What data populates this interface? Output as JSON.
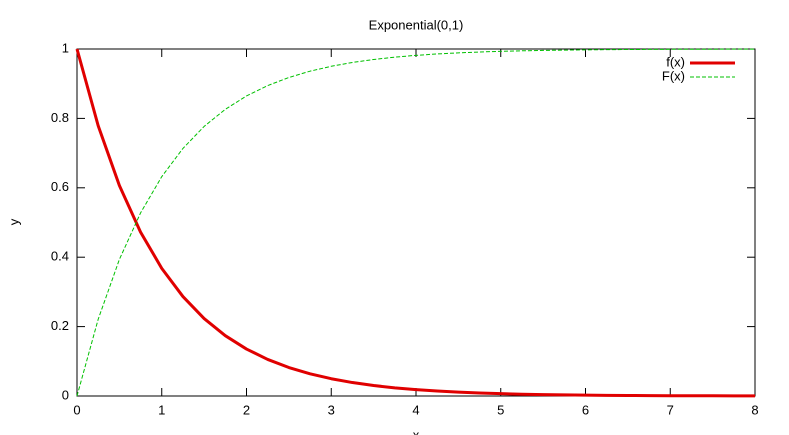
{
  "chart_data": {
    "type": "line",
    "title": "Exponential(0,1)",
    "x_label": "x",
    "y_label": "y",
    "x": [
      0,
      0.25,
      0.5,
      0.75,
      1,
      1.25,
      1.5,
      1.75,
      2,
      2.25,
      2.5,
      2.75,
      3,
      3.25,
      3.5,
      3.75,
      4,
      4.25,
      4.5,
      4.75,
      5,
      5.25,
      5.5,
      5.75,
      6,
      6.25,
      6.5,
      6.75,
      7,
      7.25,
      7.5,
      7.75,
      8
    ],
    "series": [
      {
        "name": "f(x)",
        "color": "#e00000",
        "dashed": false,
        "width": 3,
        "values": [
          1,
          0.7788,
          0.6065,
          0.4724,
          0.3679,
          0.2865,
          0.2231,
          0.1738,
          0.1353,
          0.1054,
          0.0821,
          0.0639,
          0.0498,
          0.0388,
          0.0302,
          0.0235,
          0.0183,
          0.0143,
          0.0111,
          0.0087,
          0.0067,
          0.0052,
          0.0041,
          0.0032,
          0.0025,
          0.0019,
          0.0015,
          0.0012,
          0.0009,
          0.0007,
          0.0006,
          0.0004,
          0.0003
        ]
      },
      {
        "name": "F(x)",
        "color": "#00c000",
        "dashed": true,
        "width": 1,
        "values": [
          0,
          0.2212,
          0.3935,
          0.5276,
          0.6321,
          0.7135,
          0.7769,
          0.8262,
          0.8647,
          0.8946,
          0.9179,
          0.9361,
          0.9502,
          0.9612,
          0.9698,
          0.9765,
          0.9817,
          0.9857,
          0.9889,
          0.9913,
          0.9933,
          0.9948,
          0.9959,
          0.9968,
          0.9975,
          0.9981,
          0.9985,
          0.9988,
          0.9991,
          0.9993,
          0.9994,
          0.9996,
          0.9997
        ]
      }
    ],
    "xlim": [
      0,
      8
    ],
    "xticks": [
      0,
      1,
      2,
      3,
      4,
      5,
      6,
      7,
      8
    ],
    "ylim": [
      0,
      1
    ],
    "yticks": [
      0,
      0.2,
      0.4,
      0.6,
      0.8,
      1
    ],
    "legend": "top-right"
  }
}
